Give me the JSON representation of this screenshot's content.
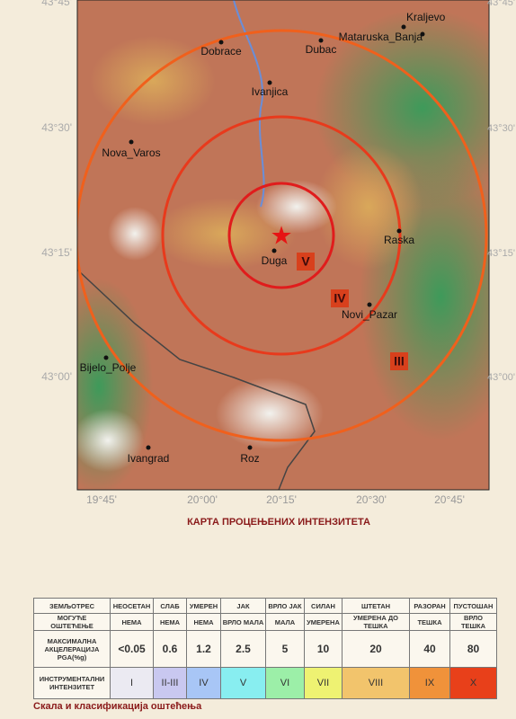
{
  "map": {
    "lat_labels": [
      "43°45'",
      "43°30'",
      "43°15'",
      "43°00'"
    ],
    "lon_labels": [
      "19°45'",
      "20°00'",
      "20°15'",
      "20°30'",
      "20°45'"
    ],
    "places": [
      "Kraljevo",
      "Mataruska_Banja",
      "Dobrace",
      "Dubac",
      "Ivanjica",
      "Nova_Varos",
      "Raska",
      "Duga",
      "Novi_Pazar",
      "Bijelo_Polje",
      "Ivangrad",
      "Roz"
    ],
    "intensity_labels": [
      "V",
      "IV",
      "III"
    ],
    "title": "КАРТА ПРОЦЕЊЕНИХ ИНТЕНЗИТЕТА"
  },
  "table": {
    "rows": [
      [
        "ЗЕМЉОТРЕС",
        "НЕОСЕТАН",
        "СЛАБ",
        "УМЕРЕН",
        "ЈАК",
        "ВРЛО ЈАК",
        "СИЛАН",
        "ШТЕТАН",
        "РАЗОРАН",
        "ПУСТОШАН"
      ],
      [
        "МОГУЋЕ ОШТЕЋЕЊЕ",
        "НЕМА",
        "НЕМА",
        "НЕМА",
        "ВРЛО МАЛА",
        "МАЛА",
        "УМЕРЕНА",
        "УМЕРЕНА ДО ТЕШКА",
        "ТЕШКА",
        "ВРЛО ТЕШКА"
      ],
      [
        "МАКСИМАЛНА АКЦЕЛЕРАЦИЈА PGA(%g)",
        "<0.05",
        "0.6",
        "1.2",
        "2.5",
        "5",
        "10",
        "20",
        "40",
        "80"
      ],
      [
        "ИНСТРУМЕНТАЛНИ ИНТЕНЗИТЕТ",
        "I",
        "II-III",
        "IV",
        "V",
        "VI",
        "VII",
        "VIII",
        "IX",
        "X"
      ]
    ],
    "caption": "Скала и класификација оштећења"
  }
}
